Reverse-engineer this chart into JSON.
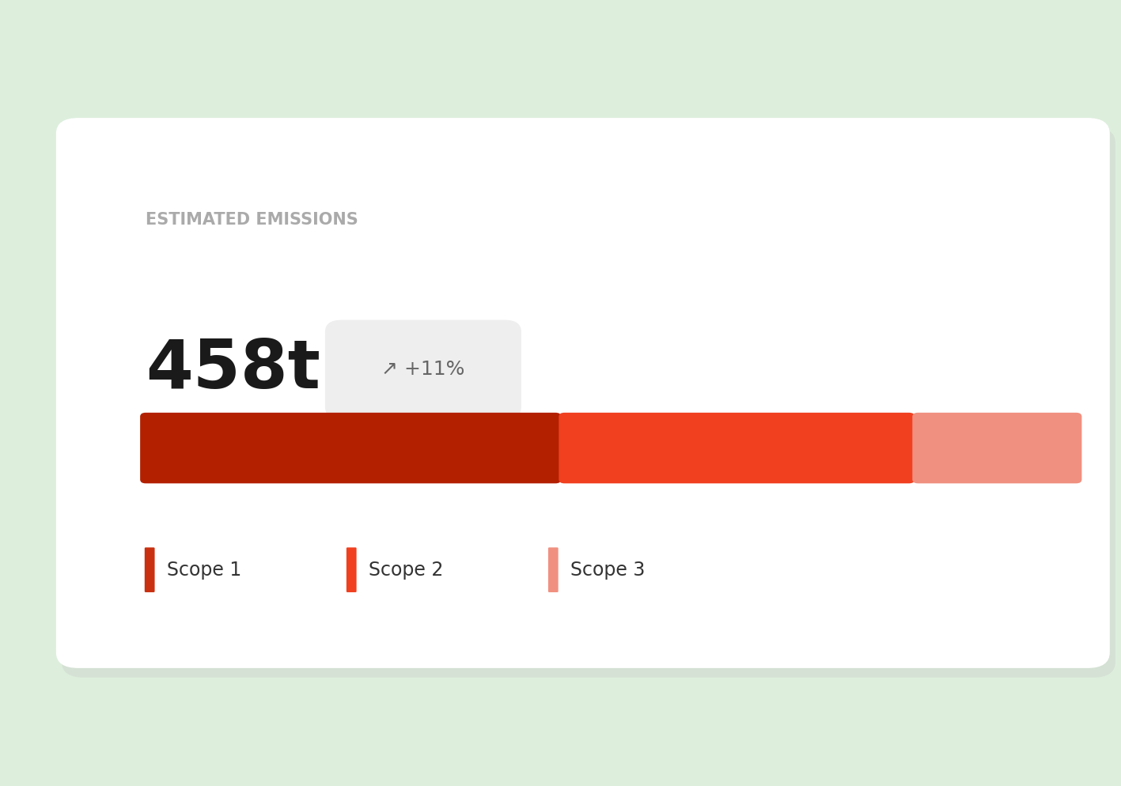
{
  "background_color": "#ddeedd",
  "card_color": "#ffffff",
  "title": "ESTIMATED EMISSIONS",
  "title_color": "#aaaaaa",
  "title_fontsize": 15,
  "main_value": "458t",
  "main_value_fontsize": 62,
  "main_value_color": "#1a1a1a",
  "badge_text": "↗ +11%",
  "badge_color": "#eeeeee",
  "badge_text_color": "#666666",
  "badge_fontsize": 18,
  "bar_values": [
    45,
    38,
    17
  ],
  "bar_colors": [
    "#b32000",
    "#f04020",
    "#f09080"
  ],
  "bar_height": 0.08,
  "bar_gap": 0.008,
  "scope_labels": [
    "Scope 1",
    "Scope 2",
    "Scope 3"
  ],
  "scope_colors": [
    "#c83010",
    "#f04020",
    "#f09080"
  ],
  "scope_fontsize": 17
}
